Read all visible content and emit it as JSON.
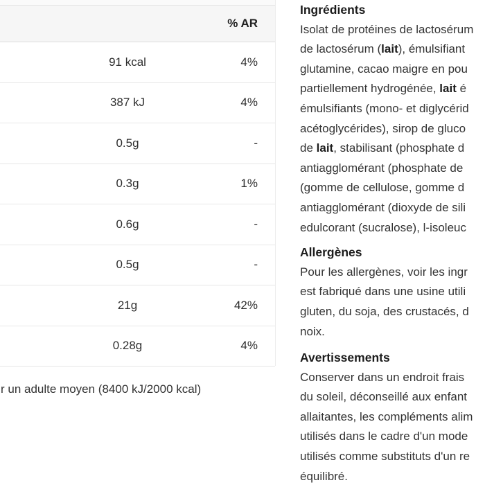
{
  "colors": {
    "background": "#ffffff",
    "table_header_bg": "#f6f6f6",
    "table_border": "#e7e7e7",
    "text": "#333333",
    "heading_text": "#1c1c1c"
  },
  "table": {
    "header": {
      "ar_label": "% AR"
    },
    "rows": [
      {
        "value": "91 kcal",
        "ar": "4%"
      },
      {
        "value": "387 kJ",
        "ar": "4%"
      },
      {
        "value": "0.5g",
        "ar": "-"
      },
      {
        "value": "0.3g",
        "ar": "1%"
      },
      {
        "value": "0.6g",
        "ar": "-"
      },
      {
        "value": "0.5g",
        "ar": "-"
      },
      {
        "value": "21g",
        "ar": "42%"
      },
      {
        "value": "0.28g",
        "ar": "4%"
      }
    ],
    "footnote": "r un adulte moyen (8400 kJ/2000 kcal)"
  },
  "info": {
    "sections": [
      {
        "id": "ingredients",
        "heading": "Ingrédients",
        "lines": [
          [
            {
              "t": "Isolat de protéines de lactosérum",
              "b": false
            }
          ],
          [
            {
              "t": "de lactosérum (",
              "b": false
            },
            {
              "t": "lait",
              "b": true
            },
            {
              "t": "), émulsifiant",
              "b": false
            }
          ],
          [
            {
              "t": "glutamine, cacao maigre en pou",
              "b": false
            }
          ],
          [
            {
              "t": "partiellement hydrogénée, ",
              "b": false
            },
            {
              "t": "lait",
              "b": true
            },
            {
              "t": " é",
              "b": false
            }
          ],
          [
            {
              "t": "émulsifiants (mono- et diglycérid",
              "b": false
            }
          ],
          [
            {
              "t": "acétoglycérides), sirop de gluco",
              "b": false
            }
          ],
          [
            {
              "t": "de ",
              "b": false
            },
            {
              "t": "lait",
              "b": true
            },
            {
              "t": ", stabilisant (phosphate d",
              "b": false
            }
          ],
          [
            {
              "t": "antiagglomérant (phosphate de",
              "b": false
            }
          ],
          [
            {
              "t": "(gomme de cellulose, gomme d",
              "b": false
            }
          ],
          [
            {
              "t": "antiagglomérant (dioxyde de sili",
              "b": false
            }
          ],
          [
            {
              "t": "edulcorant (sucralose), l-isoleuc",
              "b": false
            }
          ]
        ]
      },
      {
        "id": "allergens",
        "heading": "Allergènes",
        "lines": [
          [
            {
              "t": "Pour les allergènes, voir les ingr",
              "b": false
            }
          ],
          [
            {
              "t": "est fabriqué dans une usine utili",
              "b": false
            }
          ],
          [
            {
              "t": "gluten, du soja, des crustacés, d",
              "b": false
            }
          ],
          [
            {
              "t": "noix.",
              "b": false
            }
          ]
        ]
      },
      {
        "id": "warnings",
        "heading": "Avertissements",
        "lines": [
          [
            {
              "t": "Conserver dans un endroit frais",
              "b": false
            }
          ],
          [
            {
              "t": "du soleil, déconseillé aux enfant",
              "b": false
            }
          ],
          [
            {
              "t": "allaitantes, les compléments alim",
              "b": false
            }
          ],
          [
            {
              "t": "utilisés dans le cadre d'un mode",
              "b": false
            }
          ],
          [
            {
              "t": "utilisés comme substituts d'un re",
              "b": false
            }
          ],
          [
            {
              "t": "équilibré.",
              "b": false
            }
          ]
        ]
      }
    ]
  }
}
